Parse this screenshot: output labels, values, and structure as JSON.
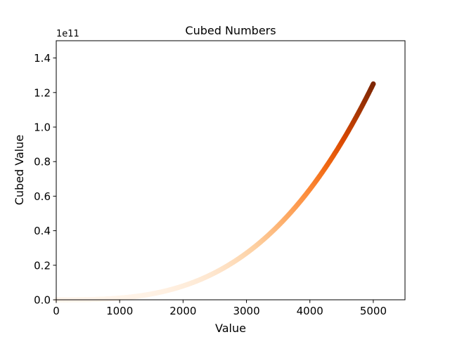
{
  "chart_data": {
    "type": "scatter",
    "title": "Cubed Numbers",
    "xlabel": "Value",
    "ylabel": "Cubed Value",
    "xlim": [
      0,
      5500
    ],
    "ylim": [
      0,
      150000000000.0
    ],
    "y_offset_label": "1e11",
    "x_ticks": [
      0,
      1000,
      2000,
      3000,
      4000,
      5000
    ],
    "x_tick_labels": [
      "0",
      "1000",
      "2000",
      "3000",
      "4000",
      "5000"
    ],
    "y_ticks": [
      0,
      20000000000.0,
      40000000000.0,
      60000000000.0,
      80000000000.0,
      100000000000.0,
      120000000000.0,
      140000000000.0
    ],
    "y_tick_labels": [
      "0.0",
      "0.2",
      "0.4",
      "0.6",
      "0.8",
      "1.0",
      "1.2",
      "1.4"
    ],
    "series": [
      {
        "function": "y = x^3",
        "x_range": [
          1,
          5000
        ],
        "colormap": "Oranges",
        "color_by": "y",
        "colormap_stops": [
          "#fff5eb",
          "#fee6ce",
          "#fdd0a2",
          "#fdae6b",
          "#fd8d3c",
          "#f16913",
          "#d94801",
          "#a63603",
          "#7f2704"
        ]
      }
    ],
    "grid": false,
    "legend": "none"
  }
}
